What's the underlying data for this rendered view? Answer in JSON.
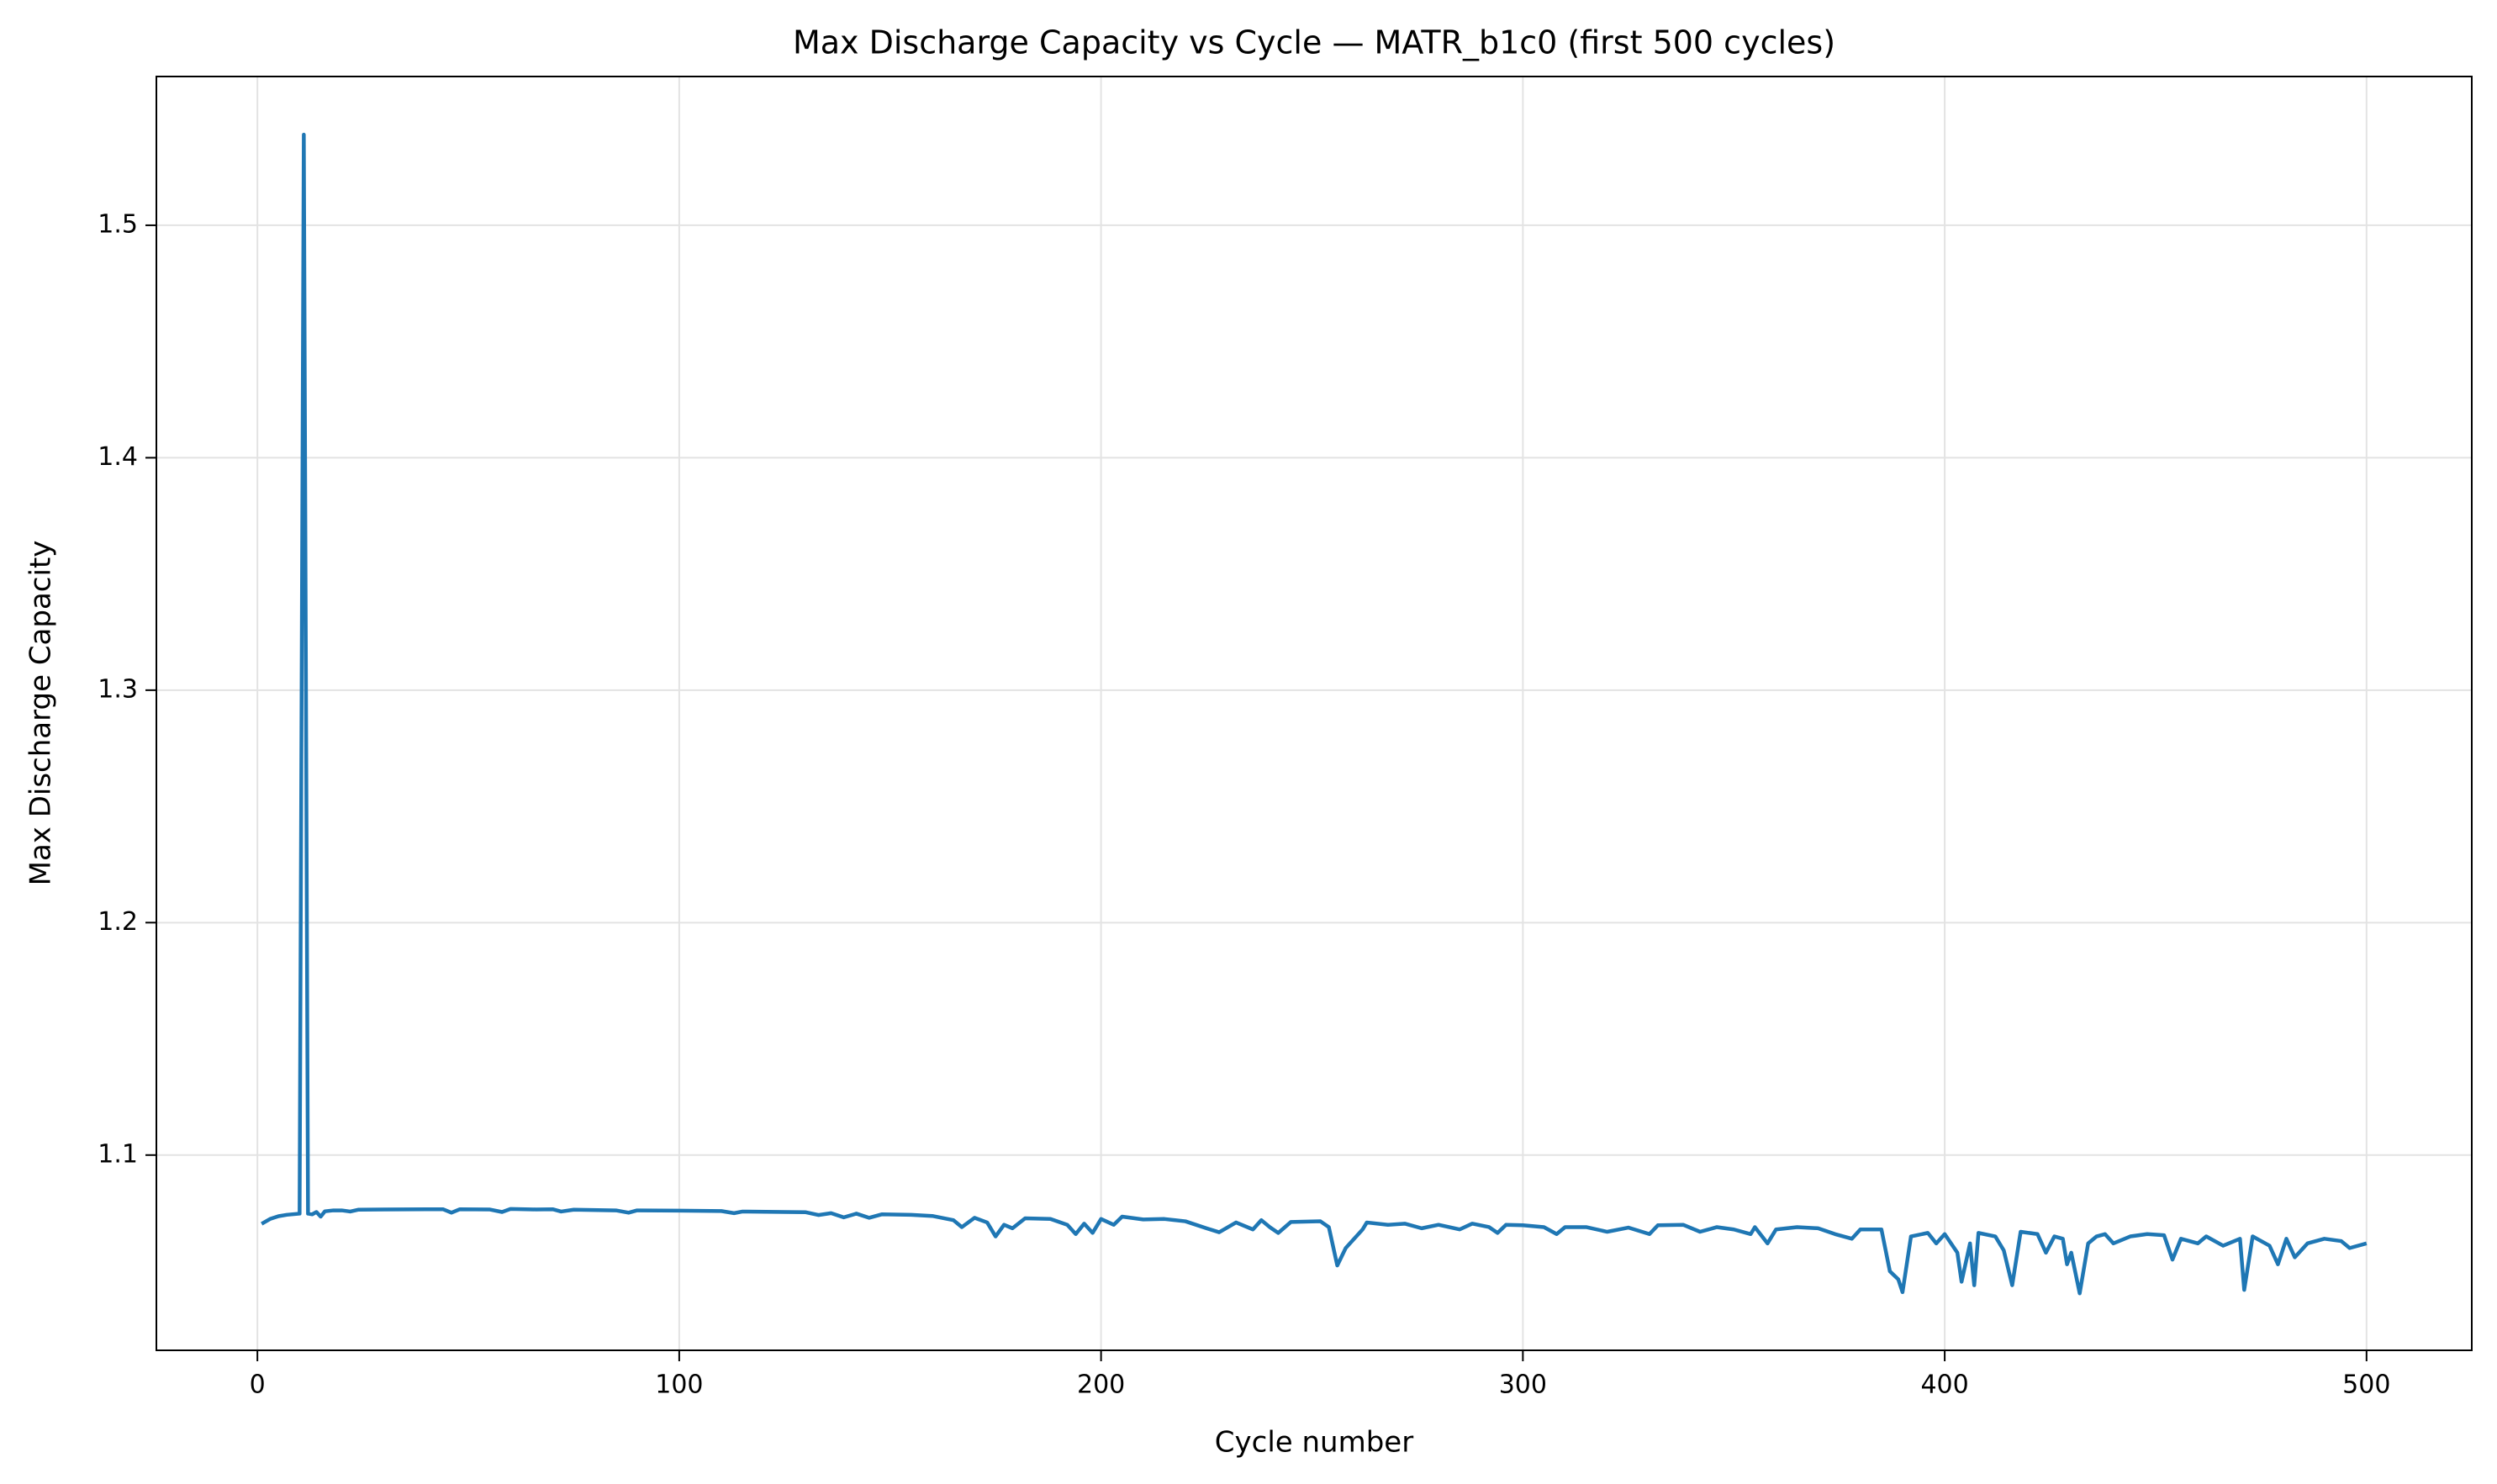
{
  "chart_data": {
    "type": "line",
    "title": "Max Discharge Capacity vs Cycle — MATR_b1c0 (first 500 cycles)",
    "x_label": "Cycle number",
    "y_label": "Max Discharge Capacity",
    "x": [
      1,
      3,
      5,
      7,
      10,
      11,
      12,
      13,
      14,
      15,
      16,
      18,
      20,
      22,
      24,
      30,
      40,
      44,
      46,
      48,
      55,
      58,
      60,
      66,
      70,
      72,
      75,
      85,
      88,
      90,
      100,
      110,
      113,
      115,
      125,
      130,
      133,
      136,
      139,
      142,
      145,
      148,
      155,
      160,
      165,
      167,
      170,
      173,
      175,
      177,
      179,
      182,
      188,
      192,
      194,
      196,
      198,
      200,
      203,
      205,
      210,
      215,
      220,
      225,
      228,
      232,
      236,
      238,
      240,
      242,
      245,
      252,
      254,
      256,
      258,
      262,
      263,
      268,
      272,
      276,
      280,
      285,
      288,
      292,
      294,
      296,
      300,
      305,
      308,
      310,
      315,
      320,
      325,
      330,
      332,
      338,
      342,
      346,
      350,
      354,
      355,
      358,
      360,
      365,
      370,
      374,
      378,
      380,
      385,
      387,
      389,
      390,
      392,
      396,
      398,
      400,
      403,
      404,
      406,
      407,
      408,
      412,
      414,
      416,
      418,
      422,
      424,
      426,
      428,
      429,
      430,
      432,
      434,
      436,
      438,
      440,
      444,
      448,
      452,
      454,
      456,
      460,
      462,
      466,
      470,
      471,
      473,
      477,
      479,
      481,
      483,
      486,
      490,
      494,
      496,
      500
    ],
    "series": [
      {
        "name": "Max Discharge Capacity",
        "color": "#1f77b4",
        "values": [
          1.0704,
          1.0725,
          1.0737,
          1.0743,
          1.0748,
          1.539,
          1.0748,
          1.0745,
          1.0755,
          1.0735,
          1.0758,
          1.0762,
          1.0762,
          1.0757,
          1.0765,
          1.0766,
          1.0767,
          1.0767,
          1.0752,
          1.0767,
          1.0766,
          1.0755,
          1.0768,
          1.0766,
          1.0767,
          1.0757,
          1.0765,
          1.0762,
          1.0752,
          1.0762,
          1.0761,
          1.0759,
          1.075,
          1.0757,
          1.0755,
          1.0754,
          1.0742,
          1.075,
          1.0732,
          1.0748,
          1.073,
          1.0745,
          1.0743,
          1.0738,
          1.072,
          1.069,
          1.073,
          1.071,
          1.065,
          1.07,
          1.0685,
          1.0728,
          1.0725,
          1.07,
          1.066,
          1.0705,
          1.0665,
          1.0725,
          1.07,
          1.0735,
          1.0723,
          1.0725,
          1.0715,
          1.0685,
          1.0668,
          1.071,
          1.068,
          1.072,
          1.069,
          1.0665,
          1.0712,
          1.0715,
          1.069,
          1.0525,
          1.06,
          1.068,
          1.071,
          1.07,
          1.0705,
          1.0685,
          1.07,
          1.068,
          1.0705,
          1.069,
          1.0665,
          1.07,
          1.0698,
          1.069,
          1.066,
          1.069,
          1.069,
          1.067,
          1.0688,
          1.066,
          1.0698,
          1.07,
          1.067,
          1.069,
          1.068,
          1.066,
          1.069,
          1.062,
          1.068,
          1.069,
          1.0685,
          1.066,
          1.064,
          1.068,
          1.068,
          1.05,
          1.0465,
          1.041,
          1.065,
          1.0665,
          1.062,
          1.066,
          1.058,
          1.0455,
          1.062,
          1.044,
          1.0665,
          1.065,
          1.059,
          1.044,
          1.067,
          1.066,
          1.058,
          1.065,
          1.064,
          1.053,
          1.058,
          1.0405,
          1.062,
          1.065,
          1.066,
          1.062,
          1.065,
          1.066,
          1.0655,
          1.055,
          1.064,
          1.062,
          1.065,
          1.061,
          1.064,
          1.042,
          1.065,
          1.061,
          1.053,
          1.064,
          1.056,
          1.062,
          1.064,
          1.063,
          1.06,
          1.062
        ]
      }
    ],
    "xlim": [
      -23.95,
      524.95
    ],
    "ylim": [
      1.016,
      1.564
    ],
    "xticks": [
      0,
      100,
      200,
      300,
      400,
      500
    ],
    "yticks": [
      1.1,
      1.2,
      1.3,
      1.4,
      1.5
    ],
    "grid": true
  }
}
